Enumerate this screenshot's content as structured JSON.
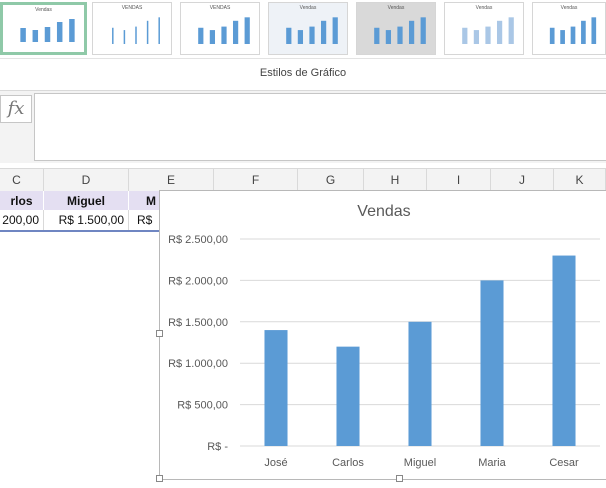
{
  "ribbon": {
    "styles_label": "Estilos de Gráfico",
    "thumbnails": [
      {
        "title": "Vendas",
        "selected": true
      },
      {
        "title": "VENDAS",
        "selected": false
      },
      {
        "title": "VENDAS",
        "selected": false
      },
      {
        "title": "Vendas",
        "selected": false
      },
      {
        "title": "Vendas",
        "selected": false
      },
      {
        "title": "Vendas",
        "selected": false
      },
      {
        "title": "Vendas",
        "selected": false
      }
    ]
  },
  "formula_bar": {
    "fx_label": "fx",
    "value": ""
  },
  "columns": [
    "C",
    "D",
    "E",
    "F",
    "G",
    "H",
    "I",
    "J",
    "K"
  ],
  "sheet": {
    "headers": [
      "rlos",
      "Miguel",
      "M"
    ],
    "values": [
      "200,00",
      "R$ 1.500,00",
      "R$"
    ]
  },
  "chart_data": {
    "type": "bar",
    "title": "Vendas",
    "categories": [
      "José",
      "Carlos",
      "Miguel",
      "Maria",
      "Cesar"
    ],
    "values": [
      1400,
      1200,
      1500,
      2000,
      2300
    ],
    "ylim": [
      0,
      2500
    ],
    "yticks": [
      0,
      500,
      1000,
      1500,
      2000,
      2500
    ],
    "ytick_labels": [
      "R$ -",
      "R$ 500,00",
      "R$ 1.000,00",
      "R$ 1.500,00",
      "R$ 2.000,00",
      "R$ 2.500,00"
    ],
    "bar_color": "#5b9bd5",
    "grid": true,
    "legend": "none"
  }
}
